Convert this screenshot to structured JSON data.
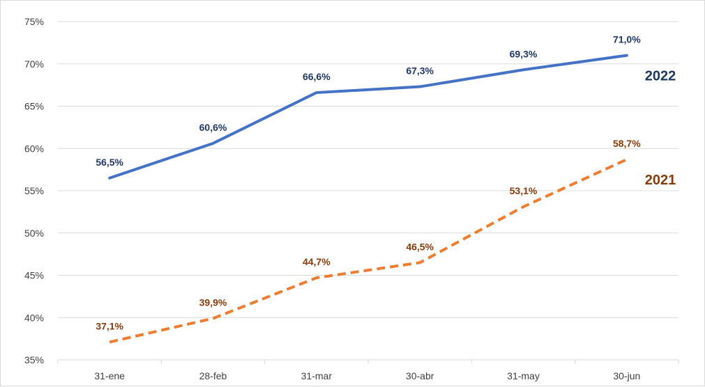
{
  "chart_data": {
    "type": "line",
    "title": "",
    "xlabel": "",
    "ylabel": "",
    "categories": [
      "31-ene",
      "28-feb",
      "31-mar",
      "30-abr",
      "31-may",
      "30-jun"
    ],
    "ylim": [
      35,
      75
    ],
    "yticks": [
      35,
      40,
      45,
      50,
      55,
      60,
      65,
      70,
      75
    ],
    "ytick_labels": [
      "35%",
      "40%",
      "45%",
      "50%",
      "55%",
      "60%",
      "65%",
      "70%",
      "75%"
    ],
    "grid": true,
    "legend": "none",
    "series": [
      {
        "name": "2022",
        "values": [
          56.5,
          60.6,
          66.6,
          67.3,
          69.3,
          71.0
        ],
        "labels": [
          "56,5%",
          "60,6%",
          "66,6%",
          "67,3%",
          "69,3%",
          "71,0%"
        ],
        "color": "#4472C4",
        "label_color": "#1F3864",
        "line_style": "solid"
      },
      {
        "name": "2021",
        "values": [
          37.1,
          39.9,
          44.7,
          46.5,
          53.1,
          58.7
        ],
        "labels": [
          "37,1%",
          "39,9%",
          "44,7%",
          "46,5%",
          "53,1%",
          "58,7%"
        ],
        "color": "#ED7D31",
        "label_color": "#843C0C",
        "line_style": "dashed"
      }
    ]
  }
}
